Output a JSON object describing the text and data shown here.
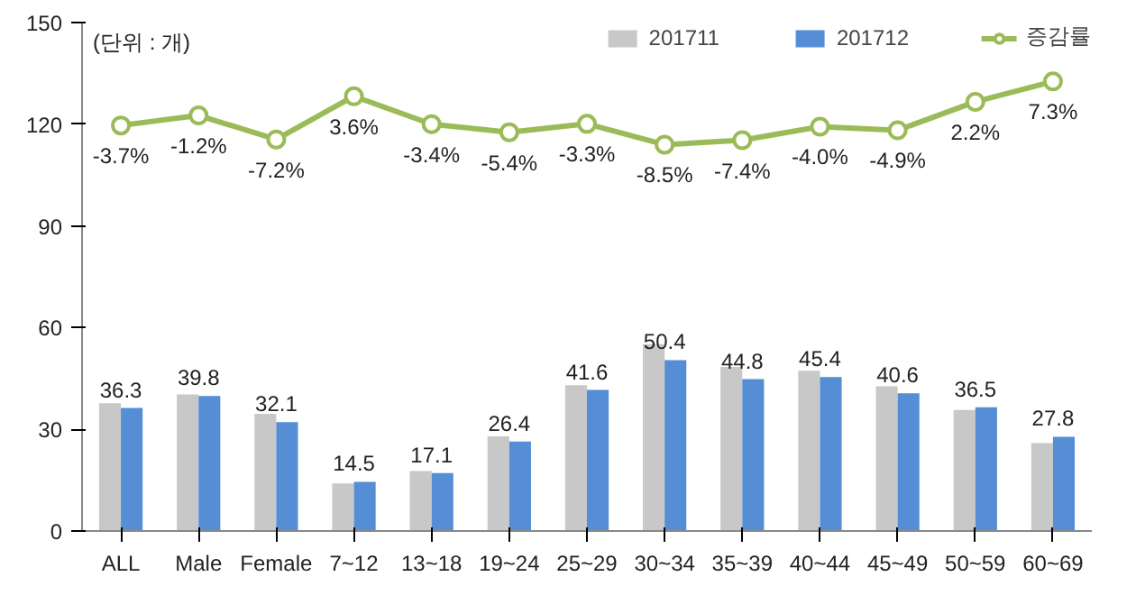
{
  "chart_data": {
    "type": "bar",
    "ylabel": "(단위 : 개)",
    "categories": [
      "ALL",
      "Male",
      "Female",
      "7~12",
      "13~18",
      "19~24",
      "25~29",
      "30~34",
      "35~39",
      "40~44",
      "45~49",
      "50~59",
      "60~69"
    ],
    "series": [
      {
        "name": "201711",
        "color": "#c8c8c8",
        "values": [
          37.7,
          40.3,
          34.6,
          14.0,
          17.7,
          27.9,
          43.0,
          55.1,
          48.4,
          47.3,
          42.7,
          35.7,
          25.9
        ]
      },
      {
        "name": "201712",
        "color": "#558ed5",
        "values": [
          36.3,
          39.8,
          32.1,
          14.5,
          17.1,
          26.4,
          41.6,
          50.4,
          44.8,
          45.4,
          40.6,
          36.5,
          27.8
        ],
        "value_labels": [
          "36.3",
          "39.8",
          "32.1",
          "14.5",
          "17.1",
          "26.4",
          "41.6",
          "50.4",
          "44.8",
          "45.4",
          "40.6",
          "36.5",
          "27.8"
        ]
      },
      {
        "name": "증감률",
        "type": "line",
        "axis": "y2",
        "color": "#9bbb59",
        "marker": "circle",
        "values": [
          -3.7,
          -1.2,
          -7.2,
          3.6,
          -3.4,
          -5.4,
          -3.3,
          -8.5,
          -7.4,
          -4.0,
          -4.9,
          2.2,
          7.3
        ],
        "value_labels": [
          "-3.7%",
          "-1.2%",
          "-7.2%",
          "3.6%",
          "-3.4%",
          "-5.4%",
          "-3.3%",
          "-8.5%",
          "-7.4%",
          "-4.0%",
          "-4.9%",
          "2.2%",
          "7.3%"
        ]
      }
    ],
    "ylim": [
      0,
      150
    ],
    "yticks": [
      0,
      30,
      60,
      90,
      120,
      150
    ],
    "y2lim": [
      -105,
      22
    ],
    "legend": "top right",
    "grid": false
  }
}
